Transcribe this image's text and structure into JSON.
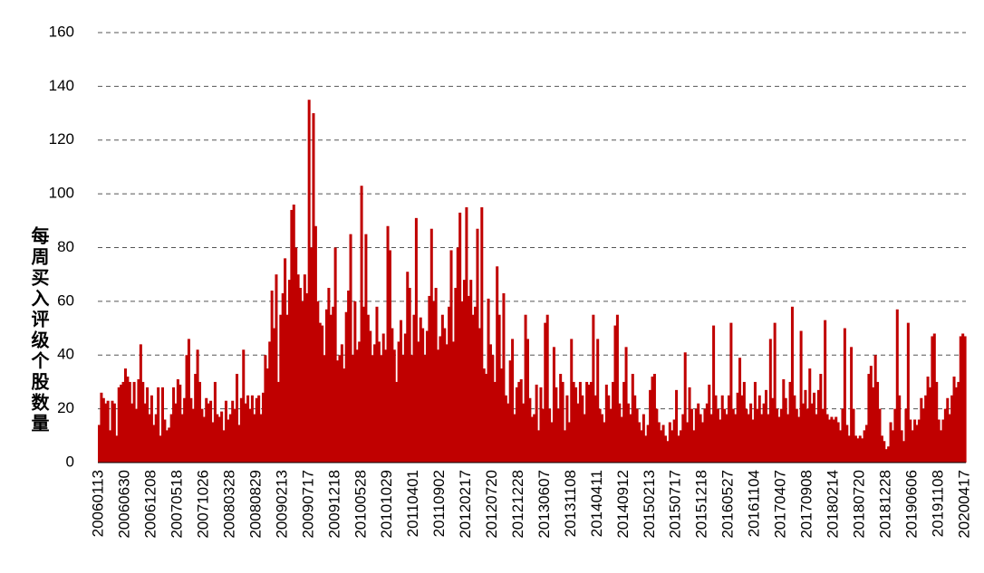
{
  "chart_data": {
    "type": "bar",
    "y_label": "每周买入评级个股数量",
    "color": "#c00000",
    "ylim": [
      0,
      160
    ],
    "yticks": [
      0,
      20,
      40,
      60,
      80,
      100,
      120,
      140,
      160
    ],
    "grid": true,
    "categories": [
      "20060113",
      null,
      null,
      null,
      null,
      null,
      null,
      null,
      null,
      null,
      null,
      null,
      "20060630",
      null,
      null,
      null,
      null,
      null,
      null,
      null,
      null,
      null,
      null,
      null,
      "20061208",
      null,
      null,
      null,
      null,
      null,
      null,
      null,
      null,
      null,
      null,
      null,
      "20070518",
      null,
      null,
      null,
      null,
      null,
      null,
      null,
      null,
      null,
      null,
      null,
      "20071026",
      null,
      null,
      null,
      null,
      null,
      null,
      null,
      null,
      null,
      null,
      null,
      "20080328",
      null,
      null,
      null,
      null,
      null,
      null,
      null,
      null,
      null,
      null,
      null,
      "20080829",
      null,
      null,
      null,
      null,
      null,
      null,
      null,
      null,
      null,
      null,
      null,
      "20090213",
      null,
      null,
      null,
      null,
      null,
      null,
      null,
      null,
      null,
      null,
      null,
      "20090717",
      null,
      null,
      null,
      null,
      null,
      null,
      null,
      null,
      null,
      null,
      null,
      "20091218",
      null,
      null,
      null,
      null,
      null,
      null,
      null,
      null,
      null,
      null,
      null,
      "20100528",
      null,
      null,
      null,
      null,
      null,
      null,
      null,
      null,
      null,
      null,
      null,
      "20101029",
      null,
      null,
      null,
      null,
      null,
      null,
      null,
      null,
      null,
      null,
      null,
      "20110401",
      null,
      null,
      null,
      null,
      null,
      null,
      null,
      null,
      null,
      null,
      null,
      "20110902",
      null,
      null,
      null,
      null,
      null,
      null,
      null,
      null,
      null,
      null,
      null,
      "20120217",
      null,
      null,
      null,
      null,
      null,
      null,
      null,
      null,
      null,
      null,
      null,
      "20120720",
      null,
      null,
      null,
      null,
      null,
      null,
      null,
      null,
      null,
      null,
      null,
      "20121228",
      null,
      null,
      null,
      null,
      null,
      null,
      null,
      null,
      null,
      null,
      null,
      "20130607",
      null,
      null,
      null,
      null,
      null,
      null,
      null,
      null,
      null,
      null,
      null,
      "20131108",
      null,
      null,
      null,
      null,
      null,
      null,
      null,
      null,
      null,
      null,
      null,
      "20140411",
      null,
      null,
      null,
      null,
      null,
      null,
      null,
      null,
      null,
      null,
      null,
      "20140912",
      null,
      null,
      null,
      null,
      null,
      null,
      null,
      null,
      null,
      null,
      null,
      "20150213",
      null,
      null,
      null,
      null,
      null,
      null,
      null,
      null,
      null,
      null,
      null,
      "20150717",
      null,
      null,
      null,
      null,
      null,
      null,
      null,
      null,
      null,
      null,
      null,
      "20151218",
      null,
      null,
      null,
      null,
      null,
      null,
      null,
      null,
      null,
      null,
      null,
      "20160527",
      null,
      null,
      null,
      null,
      null,
      null,
      null,
      null,
      null,
      null,
      null,
      "20161104",
      null,
      null,
      null,
      null,
      null,
      null,
      null,
      null,
      null,
      null,
      null,
      "20170407",
      null,
      null,
      null,
      null,
      null,
      null,
      null,
      null,
      null,
      null,
      null,
      "20170908",
      null,
      null,
      null,
      null,
      null,
      null,
      null,
      null,
      null,
      null,
      null,
      "20180214",
      null,
      null,
      null,
      null,
      null,
      null,
      null,
      null,
      null,
      null,
      null,
      "20180720",
      null,
      null,
      null,
      null,
      null,
      null,
      null,
      null,
      null,
      null,
      null,
      "20181228",
      null,
      null,
      null,
      null,
      null,
      null,
      null,
      null,
      null,
      null,
      null,
      "20190606",
      null,
      null,
      null,
      null,
      null,
      null,
      null,
      null,
      null,
      null,
      null,
      "20191108",
      null,
      null,
      null,
      null,
      null,
      null,
      null,
      null,
      null,
      null,
      null,
      "20200417"
    ],
    "values": [
      14,
      26,
      24,
      22,
      23,
      12,
      23,
      22,
      10,
      28,
      29,
      30,
      35,
      32,
      30,
      22,
      30,
      20,
      31,
      44,
      30,
      22,
      28,
      18,
      25,
      14,
      18,
      28,
      10,
      28,
      16,
      12,
      13,
      18,
      28,
      22,
      31,
      29,
      18,
      24,
      40,
      46,
      24,
      20,
      33,
      42,
      30,
      20,
      17,
      24,
      22,
      23,
      15,
      30,
      18,
      17,
      19,
      12,
      23,
      16,
      18,
      23,
      20,
      33,
      14,
      24,
      42,
      22,
      25,
      20,
      25,
      18,
      24,
      25,
      18,
      26,
      40,
      35,
      45,
      64,
      50,
      70,
      30,
      55,
      63,
      76,
      55,
      68,
      94,
      96,
      80,
      70,
      65,
      60,
      70,
      63,
      135,
      80,
      130,
      88,
      60,
      52,
      51,
      40,
      57,
      65,
      55,
      58,
      80,
      38,
      40,
      44,
      35,
      56,
      64,
      85,
      40,
      60,
      42,
      45,
      103,
      58,
      85,
      55,
      49,
      40,
      44,
      58,
      45,
      40,
      48,
      42,
      88,
      79,
      50,
      42,
      30,
      45,
      53,
      40,
      48,
      71,
      65,
      40,
      55,
      91,
      45,
      54,
      50,
      40,
      49,
      62,
      87,
      60,
      65,
      42,
      47,
      55,
      50,
      44,
      58,
      79,
      45,
      65,
      80,
      93,
      60,
      68,
      95,
      62,
      68,
      55,
      58,
      87,
      50,
      95,
      35,
      33,
      61,
      44,
      40,
      30,
      73,
      55,
      35,
      63,
      25,
      22,
      38,
      46,
      18,
      28,
      30,
      31,
      22,
      55,
      46,
      24,
      17,
      18,
      29,
      12,
      28,
      20,
      52,
      55,
      20,
      15,
      43,
      28,
      20,
      33,
      30,
      12,
      25,
      15,
      46,
      30,
      28,
      22,
      30,
      25,
      18,
      30,
      29,
      30,
      55,
      25,
      46,
      20,
      18,
      15,
      29,
      25,
      20,
      30,
      51,
      55,
      22,
      17,
      30,
      43,
      22,
      18,
      33,
      25,
      20,
      15,
      12,
      18,
      10,
      14,
      27,
      32,
      33,
      20,
      15,
      12,
      14,
      10,
      8,
      15,
      12,
      16,
      27,
      10,
      12,
      18,
      41,
      15,
      28,
      20,
      12,
      20,
      22,
      18,
      15,
      20,
      22,
      29,
      18,
      51,
      25,
      20,
      16,
      25,
      20,
      18,
      25,
      52,
      20,
      18,
      26,
      39,
      25,
      30,
      20,
      18,
      22,
      16,
      30,
      20,
      25,
      18,
      22,
      27,
      18,
      46,
      24,
      52,
      20,
      17,
      20,
      31,
      24,
      18,
      30,
      58,
      25,
      20,
      17,
      49,
      22,
      27,
      20,
      35,
      22,
      26,
      18,
      27,
      33,
      20,
      53,
      18,
      16,
      17,
      16,
      17,
      15,
      12,
      20,
      50,
      14,
      10,
      43,
      20,
      10,
      9,
      10,
      9,
      12,
      14,
      33,
      36,
      28,
      40,
      30,
      20,
      10,
      8,
      5,
      6,
      15,
      12,
      20,
      57,
      25,
      12,
      8,
      20,
      52,
      16,
      12,
      16,
      14,
      16,
      24,
      20,
      25,
      32,
      28,
      47,
      48,
      30,
      16,
      12,
      16,
      20,
      24,
      18,
      25,
      32,
      28,
      30,
      47,
      48,
      47
    ]
  }
}
